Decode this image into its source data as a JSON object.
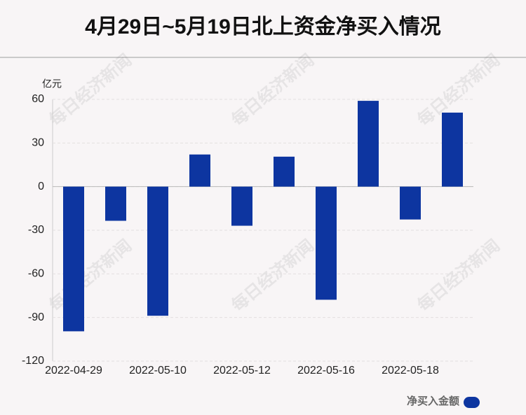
{
  "chart_data": {
    "type": "bar",
    "title": "4月29日~5月19日北上资金净买入情况",
    "y_unit": "亿元",
    "watermark": "每日经济新闻",
    "categories": [
      "2022-04-29",
      null,
      "2022-05-10",
      null,
      "2022-05-12",
      null,
      "2022-05-16",
      null,
      "2022-05-18",
      null
    ],
    "series": [
      {
        "name": "净买入金额",
        "color": "#0d35a0",
        "values": [
          -99.5,
          -23.5,
          -88.8,
          22.1,
          -26.9,
          20.6,
          -77.8,
          59.0,
          -22.6,
          50.9
        ]
      }
    ],
    "ylim": [
      -120,
      60
    ],
    "yticks": [
      -120,
      -90,
      -60,
      -30,
      0,
      30,
      60
    ],
    "grid": true,
    "legend": "bottom-right"
  }
}
